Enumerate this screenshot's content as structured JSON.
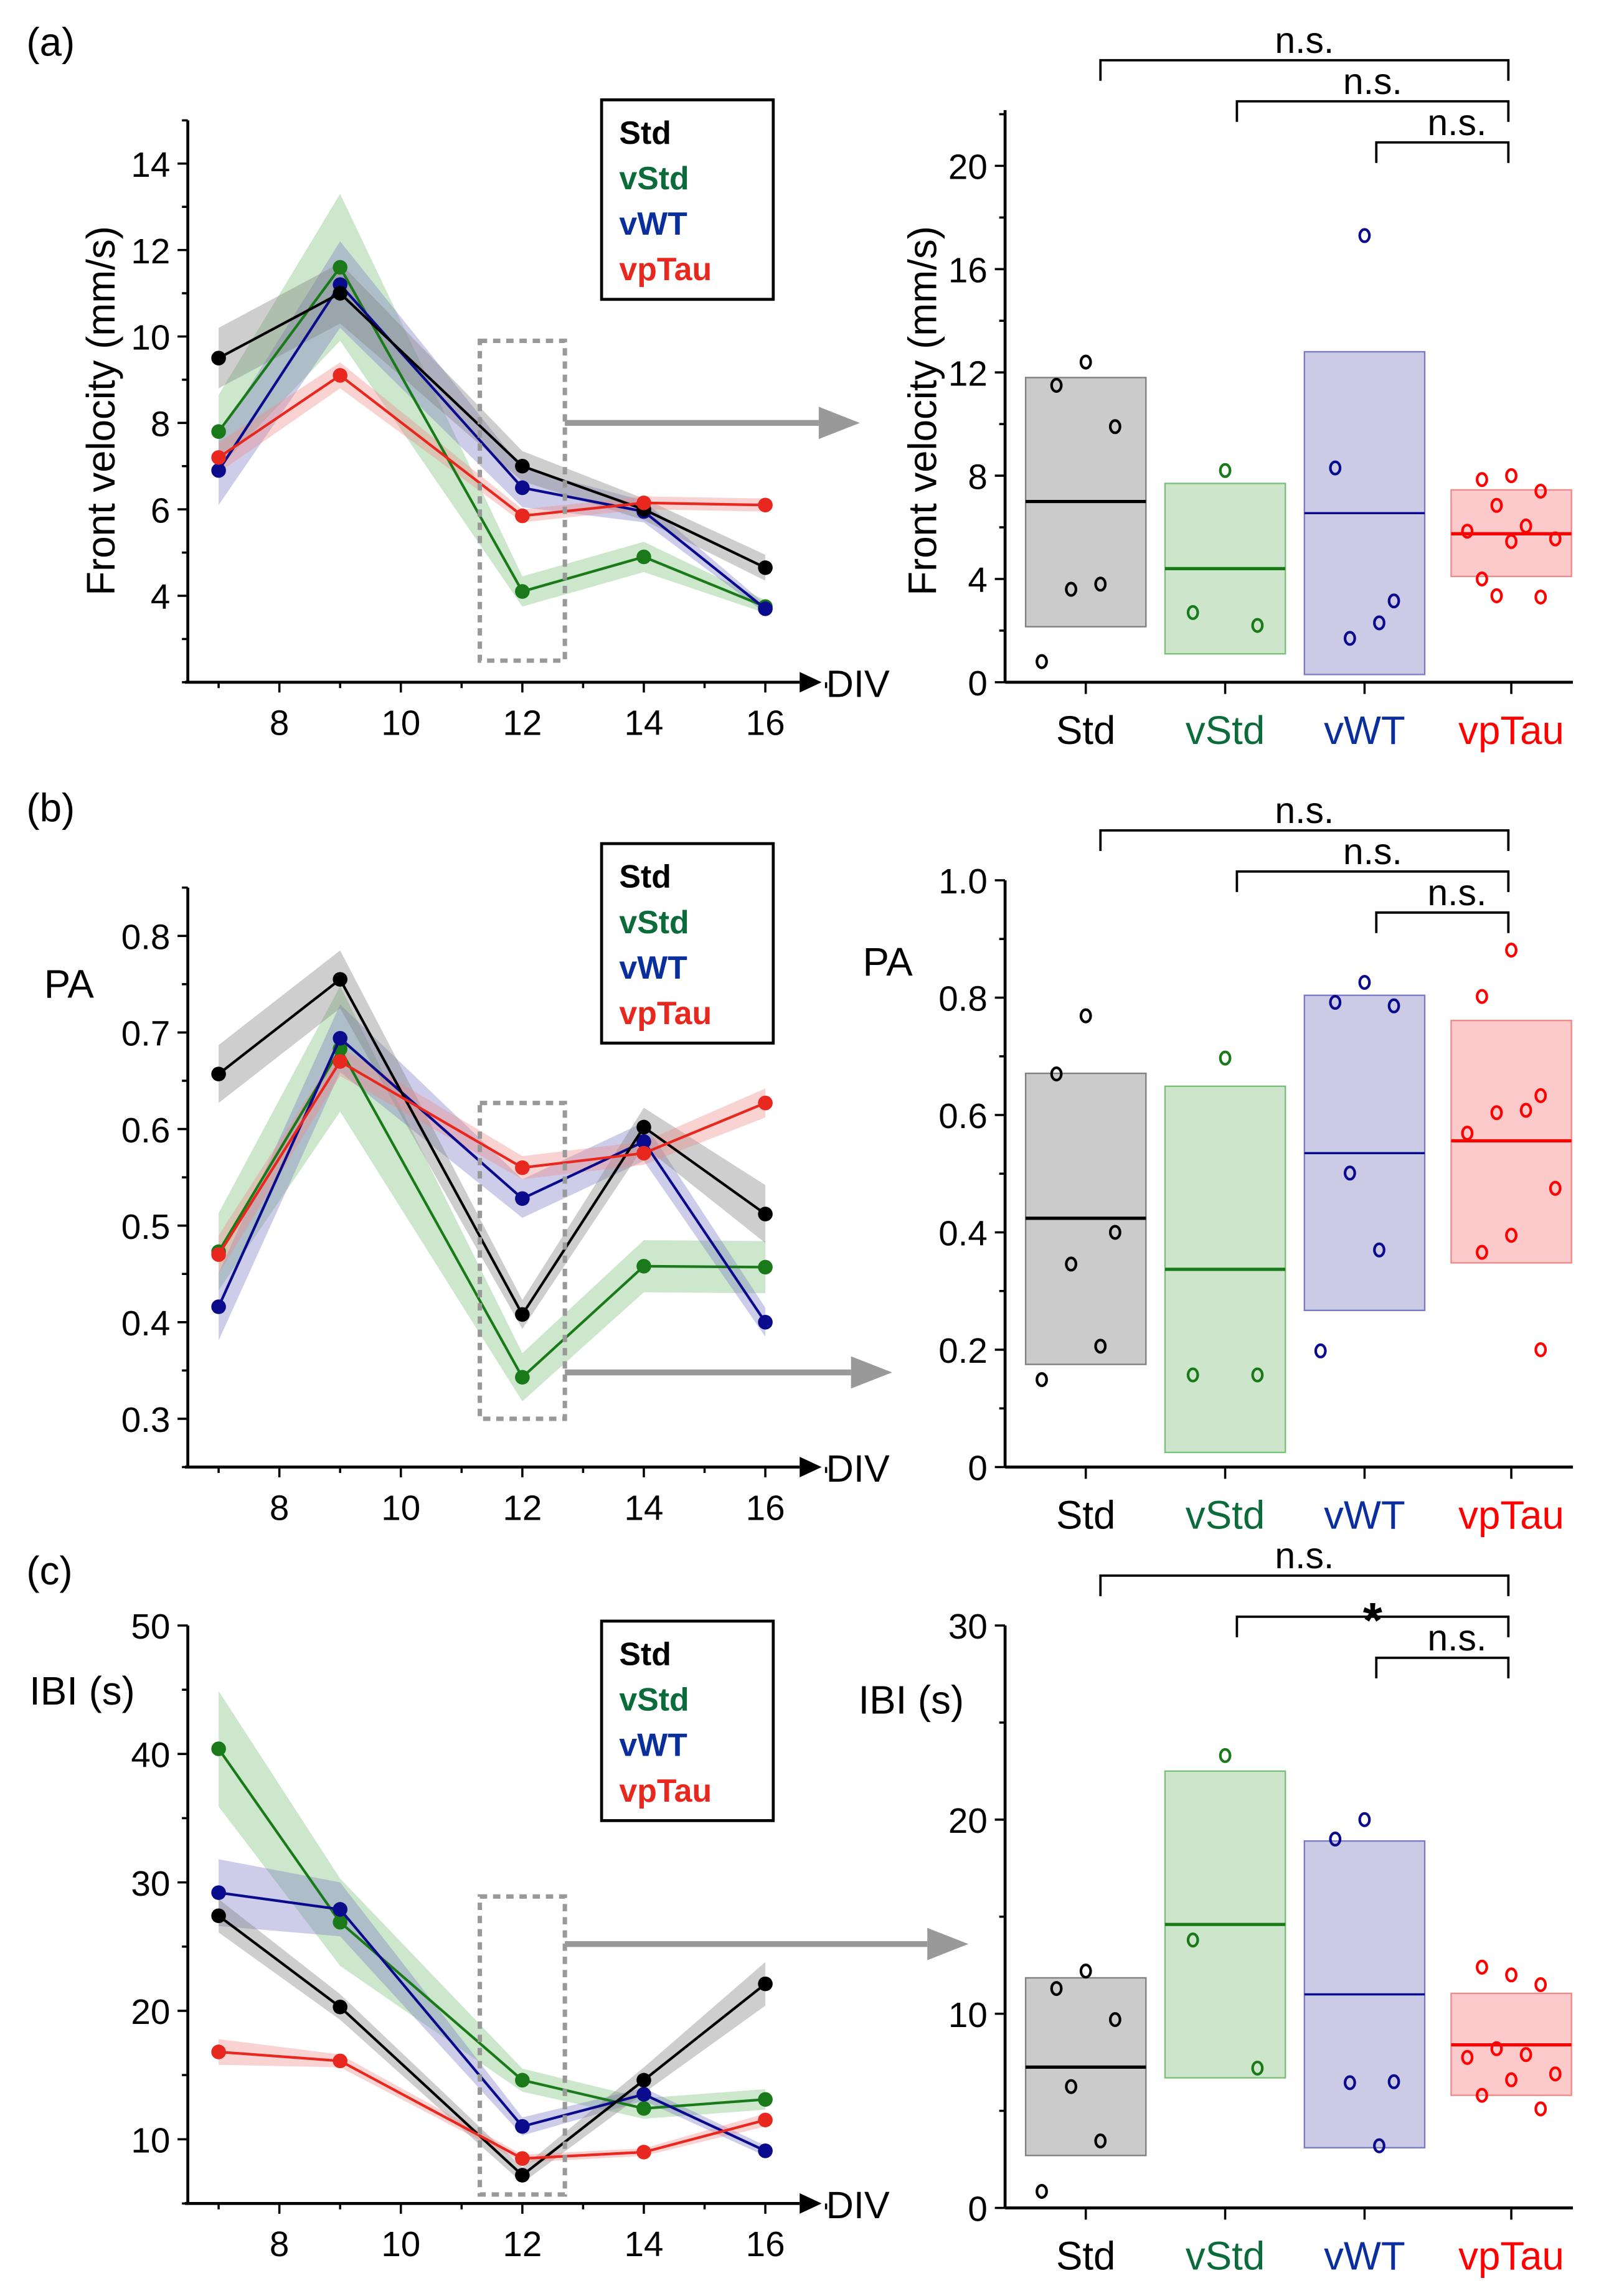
{
  "figure": {
    "panel_labels": [
      "(a)",
      "(b)",
      "(c)"
    ],
    "x_axis_label": "DIV",
    "colors": {
      "Std": "#000000",
      "vStd": "#1a7a1a",
      "vWT": "#0a0a8c",
      "vpTau": "#e8281e"
    },
    "label_colors": {
      "Std": "#000000",
      "vStd": "#0b6b3a",
      "vWT": "#0a2f9c",
      "vpTau": "#ff0000"
    },
    "band_colors": {
      "Std": "#7f7f7f",
      "vStd": "#79c079",
      "vWT": "#7b7bc4",
      "vpTau": "#f08a8a"
    },
    "box_colors": {
      "Std": "#cbcbcb",
      "vStd": "#cde6cb",
      "vWT": "#cbcbe6",
      "vpTau": "#fccaca"
    },
    "legend": [
      "Std",
      "vStd",
      "vWT",
      "vpTau"
    ],
    "highlight_div": 12
  },
  "chart_data": [
    {
      "id": "a-left",
      "panel": "(a)",
      "type": "line",
      "title": "",
      "xlabel": "DIV",
      "ylabel": "Front velocity (mm/s)",
      "x": [
        7,
        9,
        12,
        14,
        16
      ],
      "xticks": [
        8,
        10,
        12,
        14,
        16
      ],
      "xlim": [
        6.5,
        17.5
      ],
      "ylim": [
        2,
        15
      ],
      "yticks": [
        4,
        6,
        8,
        10,
        12,
        14
      ],
      "legend_position": "top-right",
      "grid": false,
      "series": [
        {
          "name": "Std",
          "values": [
            9.5,
            11.0,
            7.0,
            6.0,
            4.65
          ],
          "band": [
            0.7,
            0.7,
            0.35,
            0.25,
            0.3
          ]
        },
        {
          "name": "vStd",
          "values": [
            7.8,
            11.6,
            4.1,
            4.9,
            3.75
          ],
          "band": [
            0.85,
            1.7,
            0.35,
            0.35,
            0.15
          ]
        },
        {
          "name": "vWT",
          "values": [
            6.9,
            11.2,
            6.5,
            5.95,
            3.7
          ],
          "band": [
            0.8,
            1.0,
            0.45,
            0.25,
            0.1
          ]
        },
        {
          "name": "vpTau",
          "values": [
            7.2,
            9.1,
            5.85,
            6.15,
            6.1
          ],
          "band": [
            0.35,
            0.3,
            0.15,
            0.15,
            0.15
          ]
        }
      ],
      "highlight_box": {
        "x": [
          11.3,
          12.7
        ],
        "y": [
          2.5,
          9.9
        ]
      },
      "arrow_y": 8.0
    },
    {
      "id": "a-right",
      "panel": "(a)",
      "type": "scatter",
      "title": "",
      "xlabel": "",
      "ylabel": "Front velocity (mm/s)",
      "categories": [
        "Std",
        "vStd",
        "vWT",
        "vpTau"
      ],
      "ylim": [
        0,
        22
      ],
      "yticks": [
        0,
        4,
        8,
        12,
        16,
        20
      ],
      "groups": [
        {
          "name": "Std",
          "mean": 7.0,
          "box": [
            2.15,
            11.8
          ],
          "points": [
            12.4,
            11.5,
            9.9,
            3.6,
            3.8,
            0.8
          ]
        },
        {
          "name": "vStd",
          "mean": 4.4,
          "box": [
            1.1,
            7.7
          ],
          "points": [
            8.2,
            2.7,
            2.2
          ]
        },
        {
          "name": "vWT",
          "mean": 6.55,
          "box": [
            0.3,
            12.8
          ],
          "points": [
            17.3,
            8.3,
            3.15,
            1.7,
            2.3
          ]
        },
        {
          "name": "vpTau",
          "mean": 5.75,
          "box": [
            4.1,
            7.45
          ],
          "points": [
            8.0,
            7.85,
            7.4,
            6.85,
            6.05,
            5.85,
            5.55,
            5.45,
            4.0,
            3.3,
            3.35
          ]
        }
      ],
      "significance": [
        {
          "from": "Std",
          "to": "vpTau",
          "label": "n.s."
        },
        {
          "from": "vStd",
          "to": "vpTau",
          "label": "n.s."
        },
        {
          "from": "vWT",
          "to": "vpTau",
          "label": "n.s."
        }
      ]
    },
    {
      "id": "b-left",
      "panel": "(b)",
      "type": "line",
      "title": "",
      "xlabel": "DIV",
      "ylabel": "PA",
      "x": [
        7,
        9,
        12,
        14,
        16
      ],
      "xticks": [
        8,
        10,
        12,
        14,
        16
      ],
      "xlim": [
        6.5,
        17.5
      ],
      "ylim": [
        0.25,
        0.85
      ],
      "yticks": [
        0.3,
        0.4,
        0.5,
        0.6,
        0.7,
        0.8
      ],
      "legend_position": "top-right",
      "grid": false,
      "series": [
        {
          "name": "Std",
          "values": [
            0.657,
            0.755,
            0.408,
            0.602,
            0.512
          ],
          "band": [
            0.03,
            0.03,
            0.015,
            0.02,
            0.03
          ]
        },
        {
          "name": "vStd",
          "values": [
            0.473,
            0.683,
            0.343,
            0.458,
            0.457
          ],
          "band": [
            0.04,
            0.065,
            0.025,
            0.027,
            0.027
          ]
        },
        {
          "name": "vWT",
          "values": [
            0.416,
            0.694,
            0.528,
            0.587,
            0.4
          ],
          "band": [
            0.035,
            0.035,
            0.02,
            0.02,
            0.015
          ]
        },
        {
          "name": "vpTau",
          "values": [
            0.47,
            0.67,
            0.56,
            0.575,
            0.627
          ],
          "band": [
            0.02,
            0.015,
            0.012,
            0.012,
            0.015
          ]
        }
      ],
      "highlight_box": {
        "x": [
          11.3,
          12.7
        ],
        "y": [
          0.3,
          0.627
        ]
      },
      "arrow_y": 0.348
    },
    {
      "id": "b-right",
      "panel": "(b)",
      "type": "scatter",
      "title": "",
      "xlabel": "",
      "ylabel": "PA",
      "categories": [
        "Std",
        "vStd",
        "vWT",
        "vpTau"
      ],
      "ylim": [
        0,
        1.0
      ],
      "yticks": [
        0,
        0.2,
        0.4,
        0.6,
        0.8,
        1.0
      ],
      "groups": [
        {
          "name": "Std",
          "mean": 0.424,
          "box": [
            0.175,
            0.671
          ],
          "points": [
            0.769,
            0.67,
            0.4,
            0.346,
            0.206,
            0.149
          ]
        },
        {
          "name": "vStd",
          "mean": 0.337,
          "box": [
            0.025,
            0.649
          ],
          "points": [
            0.697,
            0.157,
            0.157
          ]
        },
        {
          "name": "vWT",
          "mean": 0.535,
          "box": [
            0.267,
            0.804
          ],
          "points": [
            0.826,
            0.792,
            0.786,
            0.501,
            0.37,
            0.198
          ]
        },
        {
          "name": "vpTau",
          "mean": 0.556,
          "box": [
            0.348,
            0.761
          ],
          "points": [
            0.881,
            0.802,
            0.633,
            0.604,
            0.608,
            0.569,
            0.475,
            0.395,
            0.366,
            0.2
          ]
        }
      ],
      "significance": [
        {
          "from": "Std",
          "to": "vpTau",
          "label": "n.s."
        },
        {
          "from": "vStd",
          "to": "vpTau",
          "label": "n.s."
        },
        {
          "from": "vWT",
          "to": "vpTau",
          "label": "n.s."
        }
      ]
    },
    {
      "id": "c-left",
      "panel": "(c)",
      "type": "line",
      "title": "",
      "xlabel": "DIV",
      "ylabel": "IBI (s)",
      "x": [
        7,
        9,
        12,
        14,
        16
      ],
      "xticks": [
        8,
        10,
        12,
        14,
        16
      ],
      "xlim": [
        6.5,
        17.5
      ],
      "ylim": [
        5,
        50
      ],
      "yticks": [
        10,
        20,
        30,
        40,
        50
      ],
      "legend_position": "top-right",
      "grid": false,
      "series": [
        {
          "name": "Std",
          "values": [
            27.4,
            20.3,
            7.2,
            14.6,
            22.1
          ],
          "band": [
            1.3,
            1.0,
            0.6,
            1.0,
            1.7
          ]
        },
        {
          "name": "vStd",
          "values": [
            40.4,
            26.9,
            14.6,
            12.4,
            13.1
          ],
          "band": [
            4.5,
            3.4,
            0.9,
            0.8,
            0.8
          ]
        },
        {
          "name": "vWT",
          "values": [
            29.2,
            27.9,
            11.0,
            13.5,
            9.1
          ],
          "band": [
            2.6,
            2.1,
            0.7,
            0.5,
            0.4
          ]
        },
        {
          "name": "vpTau",
          "values": [
            16.8,
            16.1,
            8.5,
            9.0,
            11.5
          ],
          "band": [
            1.0,
            0.5,
            0.3,
            0.3,
            0.5
          ]
        }
      ],
      "highlight_box": {
        "x": [
          11.3,
          12.7
        ],
        "y": [
          5.7,
          28.9
        ]
      },
      "arrow_y": 25.2
    },
    {
      "id": "c-right",
      "panel": "(c)",
      "type": "scatter",
      "title": "",
      "xlabel": "",
      "ylabel": "IBI (s)",
      "categories": [
        "Std",
        "vStd",
        "vWT",
        "vpTau"
      ],
      "ylim": [
        0,
        30
      ],
      "yticks": [
        0,
        10,
        20,
        30
      ],
      "groups": [
        {
          "name": "Std",
          "mean": 7.25,
          "box": [
            2.7,
            11.85
          ],
          "points": [
            12.2,
            11.3,
            9.7,
            6.25,
            3.45,
            0.85
          ]
        },
        {
          "name": "vStd",
          "mean": 14.6,
          "box": [
            6.7,
            22.5
          ],
          "points": [
            23.3,
            13.8,
            7.2
          ]
        },
        {
          "name": "vWT",
          "mean": 11.0,
          "box": [
            3.1,
            18.9
          ],
          "points": [
            20.0,
            19.0,
            6.5,
            6.45,
            3.2
          ]
        },
        {
          "name": "vpTau",
          "mean": 8.4,
          "box": [
            5.8,
            11.05
          ],
          "points": [
            12.0,
            12.4,
            11.5,
            8.2,
            7.9,
            7.75,
            6.9,
            6.6,
            5.8,
            5.1
          ]
        }
      ],
      "significance": [
        {
          "from": "Std",
          "to": "vpTau",
          "label": "n.s."
        },
        {
          "from": "vStd",
          "to": "vpTau",
          "label": "*"
        },
        {
          "from": "vWT",
          "to": "vpTau",
          "label": "n.s."
        }
      ]
    }
  ]
}
